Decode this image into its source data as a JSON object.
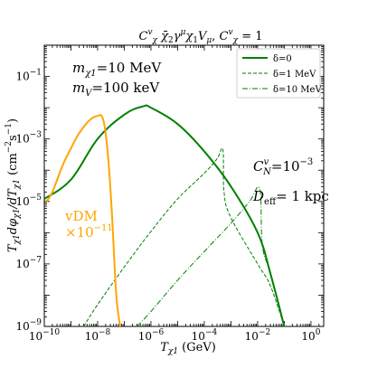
{
  "chart_data": {
    "type": "line",
    "title": "C^v_χ χ̄₂ γ^μ χ₁ V_μ, C^v_χ = 1",
    "xlabel": "T_χ1 (GeV)",
    "ylabel": "T_χ1 dφ_χ1/dT_χ1 (cm⁻² s⁻¹)",
    "x_scale": "log",
    "y_scale": "log",
    "xlim": [
      1e-10,
      3
    ],
    "ylim": [
      1e-09,
      1
    ],
    "grid": false,
    "legend_position": "top-right",
    "x_ticks": [
      {
        "base": "10",
        "exp": "−10",
        "value": 1e-10
      },
      {
        "base": "10",
        "exp": "−8",
        "value": 1e-08
      },
      {
        "base": "10",
        "exp": "−6",
        "value": 1e-06
      },
      {
        "base": "10",
        "exp": "−4",
        "value": 0.0001
      },
      {
        "base": "10",
        "exp": "−2",
        "value": 0.01
      },
      {
        "base": "10",
        "exp": "0",
        "value": 1
      }
    ],
    "y_ticks": [
      {
        "base": "10",
        "exp": "−9",
        "value": 1e-09
      },
      {
        "base": "10",
        "exp": "−7",
        "value": 1e-07
      },
      {
        "base": "10",
        "exp": "−5",
        "value": 1e-05
      },
      {
        "base": "10",
        "exp": "−3",
        "value": 0.001
      },
      {
        "base": "10",
        "exp": "−1",
        "value": 0.1
      }
    ],
    "series": [
      {
        "name": "δ=0",
        "color": "#008000",
        "style": "solid",
        "x": [
          1e-10,
          1e-09,
          1e-08,
          1e-07,
          5e-07,
          1e-06,
          1e-05,
          0.0001,
          0.001,
          0.01,
          0.03,
          0.1
        ],
        "y": [
          1.2e-05,
          5e-05,
          0.001,
          0.006,
          0.011,
          0.01,
          0.003,
          0.0004,
          3e-05,
          1e-06,
          5e-08,
          1e-09
        ]
      },
      {
        "name": "δ=1 MeV",
        "color": "#008000",
        "style": "dashed",
        "x": [
          3e-09,
          1e-08,
          1e-07,
          1e-06,
          1e-05,
          0.0001,
          0.0003,
          0.0005,
          0.00055,
          0.001,
          0.01,
          0.03,
          0.1
        ],
        "y": [
          1e-09,
          5e-09,
          8e-08,
          1.1e-06,
          1.2e-05,
          8e-05,
          0.00023,
          0.00045,
          2e-05,
          3e-06,
          1e-07,
          2e-08,
          1e-09
        ]
      },
      {
        "name": "δ=10 MeV",
        "color": "#008000",
        "style": "dashdot",
        "x": [
          3e-07,
          1e-06,
          1e-05,
          0.0001,
          0.001,
          0.005,
          0.012,
          0.015,
          0.03,
          0.1
        ],
        "y": [
          1e-09,
          3e-09,
          3e-08,
          2.5e-07,
          2e-06,
          1e-05,
          2.5e-05,
          4e-07,
          5e-08,
          1e-09
        ]
      },
      {
        "name": "vDM",
        "color": "#FFA500",
        "style": "solid",
        "x": [
          1.2e-10,
          2e-10,
          5e-10,
          1e-09,
          2e-09,
          5e-09,
          1e-08,
          1.5e-08,
          2e-08,
          2.7e-08,
          3.5e-08,
          5e-08,
          7e-08
        ],
        "y": [
          1e-05,
          2e-05,
          0.00015,
          0.0005,
          0.0015,
          0.004,
          0.0055,
          0.005,
          0.0015,
          0.0001,
          3e-06,
          1e-08,
          1e-09
        ]
      }
    ],
    "annotations": {
      "mass_chi": "m_χ1=10 MeV",
      "mass_v": "m_V=100 keV",
      "coupling": "C^v_N=10⁻³",
      "distance": "D_eff= 1 kpc",
      "vdm_label": "vDM",
      "vdm_factor": "×10⁻¹¹"
    }
  }
}
